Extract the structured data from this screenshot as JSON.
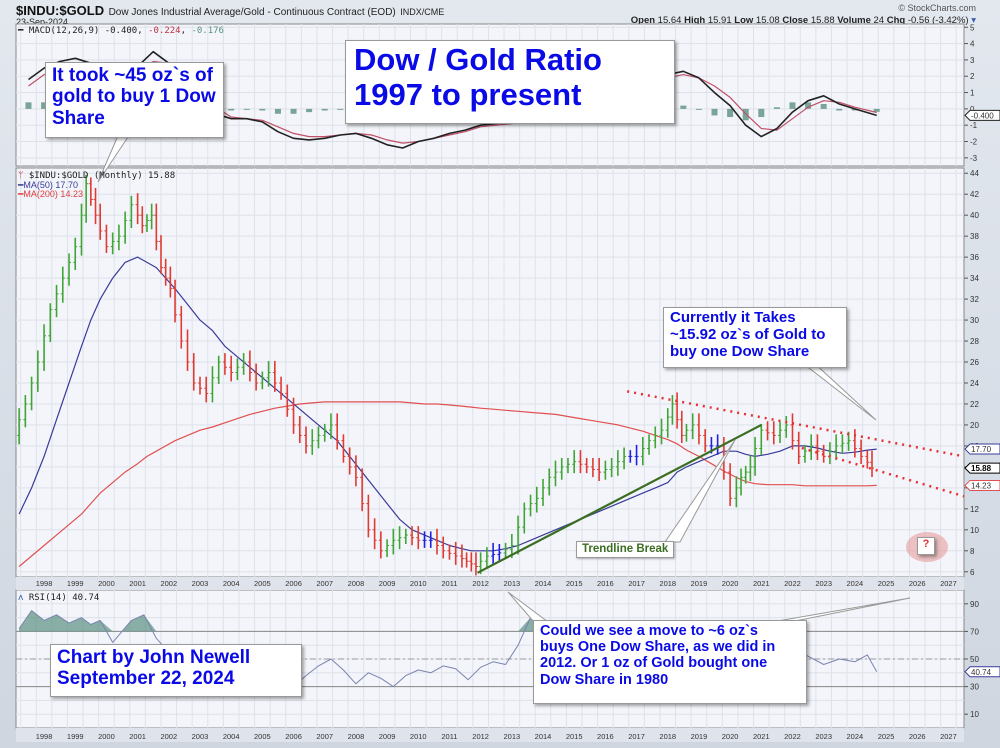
{
  "header": {
    "symbol": "$INDU:$GOLD",
    "description": "Dow Jones Industrial Average/Gold - Continuous Contract (EOD)",
    "exchange": "INDX/CME",
    "date": "23-Sep-2024",
    "watermark": "© StockCharts.com",
    "ohlc": {
      "open_label": "Open",
      "open": "15.64",
      "high_label": "High",
      "high": "15.91",
      "low_label": "Low",
      "low": "15.08",
      "close_label": "Close",
      "close": "15.88",
      "volume_label": "Volume",
      "volume": "24",
      "chg_label": "Chg",
      "chg": "-0.56 (-3.42%)"
    }
  },
  "legends": {
    "macd": {
      "label": "MACD(12,26,9)",
      "v1": "-0.400",
      "v2": "-0.224",
      "v3": "-0.176"
    },
    "price": {
      "label": "$INDU:$GOLD (Monthly) 15.88"
    },
    "ma50": {
      "label": "MA(50) 17.70"
    },
    "ma200": {
      "label": "MA(200) 14.23"
    },
    "rsi": {
      "label": "RSI(14) 40.74"
    }
  },
  "annotations": {
    "title_box": [
      "Dow / Gold Ratio",
      "1997 to present"
    ],
    "peak_box": [
      "It took ~45 oz`s of",
      "gold to buy 1 Dow",
      "Share"
    ],
    "current_box": [
      "Currently it Takes",
      "~15.92 oz`s of Gold to",
      "buy one Dow Share"
    ],
    "trendline_label": "Trendline Break",
    "question_mark": "?",
    "question_box": [
      "Could we see a move to ~6 oz`s",
      "buys One Dow Share, as we did in",
      "2012. Or 1 oz of Gold bought one",
      "Dow Share in 1980"
    ],
    "author_box": [
      "Chart by John Newell",
      "September 22, 2024"
    ]
  },
  "colors": {
    "up_bar": "#3fa535",
    "down_bar": "#e03a32",
    "neutral_bar": "#2020e0",
    "ma50": "#3a3a9a",
    "ma200": "#e05050",
    "trendline": "#3b6e22",
    "channel": "#e83030",
    "macd": "#222222",
    "signal": "#c05068",
    "hist": "#5a9080",
    "annotation_text": "#0a0ae6"
  },
  "chart_data": [
    {
      "type": "line",
      "title": "MACD(12,26,9)",
      "ylim": [
        -3.5,
        5.2
      ],
      "yticks": [
        5,
        4,
        3,
        2,
        1,
        0,
        -1,
        -2,
        -3
      ],
      "last_value_tag": "-0.400",
      "x": [
        1997.5,
        1998,
        1998.5,
        1999,
        1999.5,
        2000,
        2000.5,
        2001,
        2001.5,
        2002,
        2002.5,
        2003,
        2003.5,
        2004,
        2004.5,
        2005,
        2005.5,
        2006,
        2006.5,
        2007,
        2007.5,
        2008,
        2008.5,
        2009,
        2009.5,
        2010,
        2010.5,
        2011,
        2011.5,
        2012,
        2012.5,
        2013,
        2013.5,
        2014,
        2014.5,
        2015,
        2015.5,
        2016,
        2016.5,
        2017,
        2017.5,
        2018,
        2018.5,
        2019,
        2019.5,
        2020,
        2020.5,
        2021,
        2021.5,
        2022,
        2022.5,
        2023,
        2023.5,
        2024,
        2024.7
      ],
      "series": [
        {
          "name": "MACD",
          "values": [
            1.8,
            2.5,
            2.9,
            3.1,
            2.8,
            2.4,
            2.3,
            2.6,
            3.5,
            2.8,
            1.8,
            0.5,
            -0.3,
            -0.6,
            -0.6,
            -0.8,
            -1.4,
            -1.8,
            -1.9,
            -1.8,
            -1.6,
            -1.5,
            -1.8,
            -2.2,
            -2.4,
            -2.0,
            -1.8,
            -1.5,
            -1.3,
            -1.0,
            -0.9,
            -0.8,
            -0.6,
            -0.5,
            -0.3,
            0.1,
            0.6,
            1.0,
            1.5,
            1.8,
            2.0,
            2.1,
            2.3,
            1.9,
            1.0,
            0.2,
            -1.0,
            -1.7,
            -1.2,
            -0.2,
            0.5,
            0.8,
            0.3,
            0.0,
            -0.4
          ]
        },
        {
          "name": "Signal",
          "values": [
            1.4,
            2.1,
            2.6,
            2.8,
            2.7,
            2.4,
            2.3,
            2.4,
            2.9,
            2.8,
            2.2,
            1.0,
            0.1,
            -0.5,
            -0.6,
            -0.7,
            -1.1,
            -1.5,
            -1.7,
            -1.7,
            -1.6,
            -1.5,
            -1.6,
            -1.9,
            -2.1,
            -2.0,
            -1.8,
            -1.6,
            -1.4,
            -1.1,
            -1.0,
            -0.9,
            -0.7,
            -0.6,
            -0.4,
            -0.1,
            0.3,
            0.7,
            1.2,
            1.5,
            1.8,
            1.9,
            2.1,
            1.9,
            1.4,
            0.7,
            -0.3,
            -1.2,
            -1.3,
            -0.6,
            0.1,
            0.5,
            0.4,
            0.1,
            -0.22
          ]
        },
        {
          "name": "Histogram",
          "values": [
            0.4,
            0.4,
            0.3,
            0.3,
            0.1,
            0.0,
            0.0,
            0.2,
            0.6,
            0.0,
            -0.4,
            -0.5,
            -0.4,
            -0.1,
            0.0,
            -0.1,
            -0.3,
            -0.3,
            -0.2,
            -0.1,
            0.0,
            0.0,
            -0.2,
            -0.3,
            -0.3,
            0.0,
            0.0,
            0.1,
            0.1,
            0.1,
            0.1,
            0.1,
            0.1,
            0.1,
            0.1,
            0.2,
            0.3,
            0.3,
            0.3,
            0.3,
            0.2,
            0.2,
            0.2,
            0.0,
            -0.4,
            -0.5,
            -0.7,
            -0.5,
            0.1,
            0.4,
            0.4,
            0.3,
            -0.1,
            -0.1,
            -0.18
          ]
        }
      ]
    },
    {
      "type": "line",
      "title": "$INDU:$GOLD (Monthly)",
      "xlabel": "",
      "ylabel": "",
      "ylim": [
        5.5,
        44.5
      ],
      "yticks": [
        44,
        42,
        40,
        38,
        36,
        34,
        32,
        30,
        28,
        26,
        24,
        22,
        20,
        18,
        16,
        14,
        12,
        10,
        8,
        6
      ],
      "xticks": [
        "1998",
        "1999",
        "2000",
        "2001",
        "2002",
        "2003",
        "2004",
        "2005",
        "2006",
        "2007",
        "2008",
        "2009",
        "2010",
        "2011",
        "2012",
        "2013",
        "2014",
        "2015",
        "2016",
        "2017",
        "2018",
        "2019",
        "2020",
        "2021",
        "2022",
        "2023",
        "2024",
        "2025",
        "2026",
        "2027"
      ],
      "xlim": [
        1997.1,
        2027.5
      ],
      "last_value_tags": {
        "ma50": "17.70",
        "close": "15.88",
        "ma200": "14.23"
      },
      "x": [
        1997.2,
        1997.6,
        1998.0,
        1998.4,
        1998.8,
        1999.2,
        1999.5,
        1999.8,
        2000.2,
        2000.6,
        2001.0,
        2001.3,
        2001.6,
        2001.9,
        2002.2,
        2002.6,
        2003.0,
        2003.4,
        2003.8,
        2004.2,
        2004.6,
        2005.0,
        2005.4,
        2005.8,
        2006.2,
        2006.6,
        2007.0,
        2007.4,
        2007.8,
        2008.2,
        2008.6,
        2009.0,
        2009.4,
        2009.8,
        2010.2,
        2010.6,
        2011.0,
        2011.4,
        2011.7,
        2012.0,
        2012.4,
        2012.8,
        2013.2,
        2013.6,
        2014.0,
        2014.4,
        2014.8,
        2015.2,
        2015.6,
        2016.0,
        2016.4,
        2016.8,
        2017.2,
        2017.6,
        2018.0,
        2018.3,
        2018.6,
        2019.0,
        2019.4,
        2019.8,
        2020.2,
        2020.5,
        2020.8,
        2021.2,
        2021.6,
        2022.0,
        2022.4,
        2022.8,
        2023.2,
        2023.6,
        2024.0,
        2024.4,
        2024.7
      ],
      "series": [
        {
          "name": "$INDU:$GOLD",
          "values": [
            19,
            22,
            26,
            31,
            34,
            37,
            43,
            40,
            37,
            38,
            41,
            39,
            40,
            35,
            33,
            28,
            24,
            23,
            26,
            25,
            26,
            24,
            25,
            23,
            20,
            18,
            19,
            20,
            17,
            15,
            10,
            8,
            9,
            9.5,
            9,
            9,
            8,
            7.5,
            7,
            6.5,
            7.5,
            7.8,
            8.5,
            12,
            13,
            15,
            16,
            16.5,
            16,
            15.5,
            16,
            17,
            17,
            18.5,
            19.5,
            22,
            19,
            20,
            18,
            18,
            13,
            15,
            16,
            19.5,
            19,
            20,
            17,
            18,
            17,
            18,
            18.5,
            17,
            15.88
          ]
        },
        {
          "name": "MA(50)",
          "values": [
            11.5,
            14,
            17,
            20.5,
            24,
            27.5,
            30,
            32,
            34,
            35.5,
            36,
            35.5,
            35,
            34,
            33,
            31.5,
            30,
            29,
            27.5,
            26.5,
            25.5,
            24.5,
            23.5,
            22.5,
            21.5,
            20.5,
            19.5,
            18.5,
            17,
            15.5,
            14,
            12.5,
            11,
            10,
            9.5,
            9,
            8.5,
            8.2,
            8,
            8,
            8,
            8.2,
            8.5,
            9,
            9.5,
            10,
            10.5,
            11,
            11.5,
            12,
            12.5,
            13,
            13.5,
            14,
            14.5,
            15.5,
            16,
            16.5,
            17,
            17.5,
            17.5,
            17.2,
            17,
            17.2,
            17.5,
            18,
            18,
            17.8,
            17.5,
            17.3,
            17.4,
            17.6,
            17.7
          ]
        },
        {
          "name": "MA(200)",
          "values": [
            6.5,
            7.5,
            8.5,
            9.5,
            10.5,
            11.5,
            12.5,
            13.5,
            14.5,
            15.5,
            16.3,
            17,
            17.5,
            18,
            18.5,
            19,
            19.5,
            19.8,
            20.2,
            20.6,
            21,
            21.3,
            21.6,
            21.8,
            22,
            22.1,
            22.2,
            22.2,
            22.2,
            22.2,
            22.2,
            22.2,
            22.2,
            22.1,
            22,
            22,
            21.9,
            21.8,
            21.7,
            21.6,
            21.5,
            21.4,
            21.3,
            21.2,
            21.1,
            21,
            20.8,
            20.6,
            20.4,
            20.2,
            20,
            19.7,
            19.4,
            19,
            18.6,
            18.2,
            17.6,
            17,
            16.3,
            15.6,
            15,
            14.6,
            14.4,
            14.3,
            14.3,
            14.3,
            14.2,
            14.2,
            14.2,
            14.2,
            14.2,
            14.2,
            14.23
          ]
        }
      ],
      "overlays": {
        "trendline": [
          [
            2011.9,
            5.9
          ],
          [
            2021.0,
            20.0
          ]
        ],
        "channel_upper": [
          [
            2016.7,
            23.2
          ],
          [
            2027.5,
            17.0
          ]
        ],
        "channel_lower": [
          [
            2022.3,
            17.8
          ],
          [
            2027.5,
            13.2
          ]
        ]
      }
    },
    {
      "type": "line",
      "title": "RSI(14)",
      "ylim": [
        0,
        100
      ],
      "yticks": [
        90,
        70,
        50,
        30,
        10
      ],
      "reference_lines": [
        70,
        50,
        30
      ],
      "last_value_tag": "40.74",
      "x": [
        1997.2,
        1997.6,
        1998.0,
        1998.4,
        1998.8,
        1999.2,
        1999.5,
        1999.8,
        2000.2,
        2000.5,
        2000.8,
        2001.2,
        2001.6,
        2002.0,
        2002.5,
        2003.0,
        2003.5,
        2004.0,
        2004.5,
        2005.0,
        2005.5,
        2006.0,
        2006.4,
        2006.8,
        2007.2,
        2007.6,
        2008.0,
        2008.4,
        2008.8,
        2009.2,
        2009.6,
        2010.0,
        2010.4,
        2010.8,
        2011.2,
        2011.6,
        2012.0,
        2012.4,
        2012.8,
        2013.2,
        2013.6,
        2014.0,
        2014.5,
        2015.0,
        2015.5,
        2016.0,
        2016.5,
        2017.0,
        2017.5,
        2018.0,
        2018.5,
        2019.0,
        2019.5,
        2020.0,
        2020.5,
        2021.0,
        2021.5,
        2022.0,
        2022.5,
        2023.0,
        2023.5,
        2024.0,
        2024.4,
        2024.7
      ],
      "values": [
        72,
        85,
        78,
        82,
        76,
        80,
        75,
        78,
        62,
        70,
        78,
        82,
        65,
        55,
        40,
        45,
        35,
        38,
        42,
        35,
        40,
        30,
        38,
        45,
        50,
        42,
        32,
        40,
        36,
        30,
        38,
        42,
        40,
        45,
        43,
        35,
        44,
        48,
        46,
        60,
        80,
        70,
        65,
        62,
        58,
        60,
        55,
        62,
        68,
        72,
        55,
        60,
        48,
        42,
        38,
        65,
        55,
        58,
        52,
        46,
        50,
        48,
        53,
        40.74
      ]
    }
  ]
}
